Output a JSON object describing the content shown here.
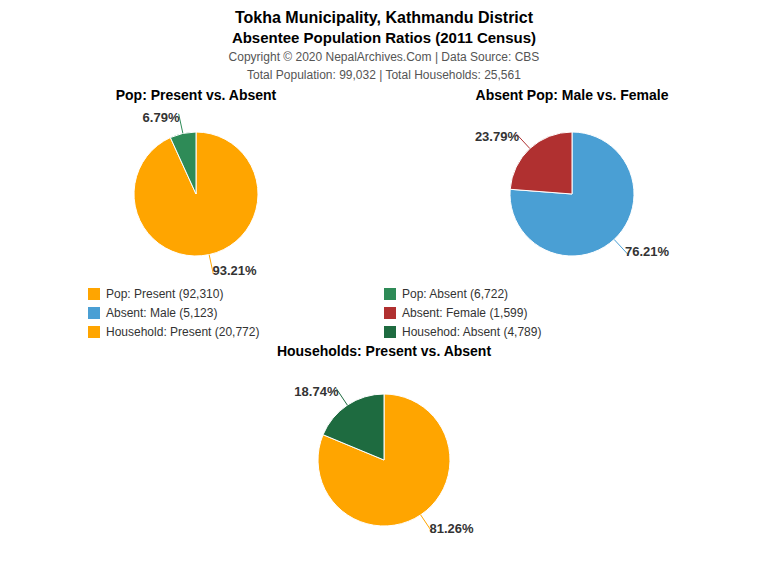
{
  "title": "Tokha Municipality, Kathmandu District",
  "subtitle": "Absentee Population Ratios (2011 Census)",
  "annotations": [
    "Copyright © 2020 NepalArchives.Com | Data Source: CBS",
    "Total Population: 99,032 | Total Households: 25,561"
  ],
  "chart_data": [
    {
      "type": "pie",
      "title": "Pop: Present vs. Absent",
      "categories": [
        "Pop: Present (92,310)",
        "Pop: Absent (6,722)"
      ],
      "values": [
        93.21,
        6.79
      ],
      "value_labels": [
        "93.21%",
        "6.79%"
      ],
      "colors": [
        "#FFA500",
        "#2E8B57"
      ],
      "legend": "bottom"
    },
    {
      "type": "pie",
      "title": "Absent Pop: Male vs. Female",
      "categories": [
        "Absent: Male (5,123)",
        "Absent: Female (1,599)"
      ],
      "values": [
        76.21,
        23.79
      ],
      "value_labels": [
        "76.21%",
        "23.79%"
      ],
      "colors": [
        "#4A9FD4",
        "#B03030"
      ],
      "legend": "bottom"
    },
    {
      "type": "pie",
      "title": "Households: Present vs. Absent",
      "categories": [
        "Household: Present (20,772)",
        "Househod: Absent (4,789)"
      ],
      "values": [
        81.26,
        18.74
      ],
      "value_labels": [
        "81.26%",
        "18.74%"
      ],
      "colors": [
        "#FFA500",
        "#1E6B40"
      ],
      "legend": "bottom"
    }
  ]
}
